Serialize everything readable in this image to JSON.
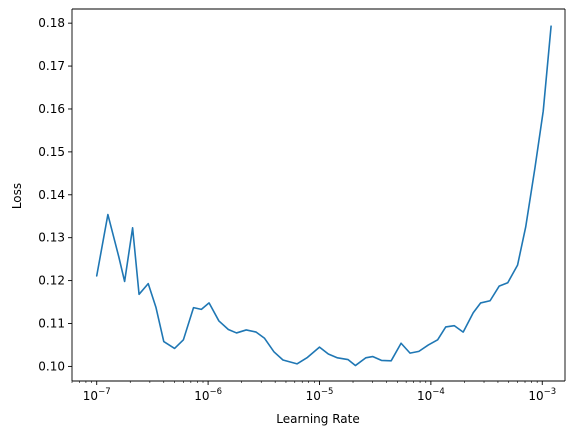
{
  "chart_data": {
    "type": "line",
    "title": "",
    "xlabel": "Learning Rate",
    "ylabel": "Loss",
    "xscale": "log",
    "xlim": [
      6e-08,
      0.0016
    ],
    "ylim": [
      0.0966,
      0.1833
    ],
    "grid": false,
    "x_ticks": [
      {
        "value": 1e-07,
        "base": "10",
        "exp": "−7"
      },
      {
        "value": 1e-06,
        "base": "10",
        "exp": "−6"
      },
      {
        "value": 1e-05,
        "base": "10",
        "exp": "−5"
      },
      {
        "value": 0.0001,
        "base": "10",
        "exp": "−4"
      },
      {
        "value": 0.001,
        "base": "10",
        "exp": "−3"
      }
    ],
    "y_ticks": [
      {
        "value": 0.1,
        "label": "0.10"
      },
      {
        "value": 0.11,
        "label": "0.11"
      },
      {
        "value": 0.12,
        "label": "0.12"
      },
      {
        "value": 0.13,
        "label": "0.13"
      },
      {
        "value": 0.14,
        "label": "0.14"
      },
      {
        "value": 0.15,
        "label": "0.15"
      },
      {
        "value": 0.16,
        "label": "0.16"
      },
      {
        "value": 0.17,
        "label": "0.17"
      },
      {
        "value": 0.18,
        "label": "0.18"
      }
    ],
    "series": [
      {
        "color": "#1f77b4",
        "x": [
          1e-07,
          1.26e-07,
          1.58e-07,
          1.78e-07,
          2.1e-07,
          2.4e-07,
          2.9e-07,
          3.4e-07,
          4e-07,
          5e-07,
          6e-07,
          7.4e-07,
          8.7e-07,
          1.02e-06,
          1.25e-06,
          1.52e-06,
          1.8e-06,
          2.2e-06,
          2.7e-06,
          3.2e-06,
          3.9e-06,
          4.7e-06,
          6.3e-06,
          7.8e-06,
          1e-05,
          1.2e-05,
          1.45e-05,
          1.8e-05,
          2.1e-05,
          2.6e-05,
          3e-05,
          3.6e-05,
          4.4e-05,
          5.4e-05,
          6.5e-05,
          7.8e-05,
          9.5e-05,
          0.000115,
          0.000136,
          0.000162,
          0.000195,
          0.00024,
          0.00028,
          0.00034,
          0.00041,
          0.00049,
          0.0006,
          0.00071,
          0.00086,
          0.00102,
          0.0012
        ],
        "y": [
          0.1211,
          0.1354,
          0.1255,
          0.1198,
          0.1323,
          0.1168,
          0.1193,
          0.1138,
          0.1058,
          0.1042,
          0.1062,
          0.1137,
          0.1133,
          0.1148,
          0.1106,
          0.1086,
          0.1078,
          0.1085,
          0.108,
          0.1066,
          0.1034,
          0.1015,
          0.1006,
          0.1021,
          0.1045,
          0.1029,
          0.102,
          0.1016,
          0.1002,
          0.102,
          0.1023,
          0.1014,
          0.1013,
          0.1054,
          0.1031,
          0.1035,
          0.105,
          0.1062,
          0.1092,
          0.1095,
          0.108,
          0.1125,
          0.1148,
          0.1153,
          0.1187,
          0.1195,
          0.1236,
          0.1325,
          0.1463,
          0.1595,
          0.1793
        ]
      }
    ]
  }
}
